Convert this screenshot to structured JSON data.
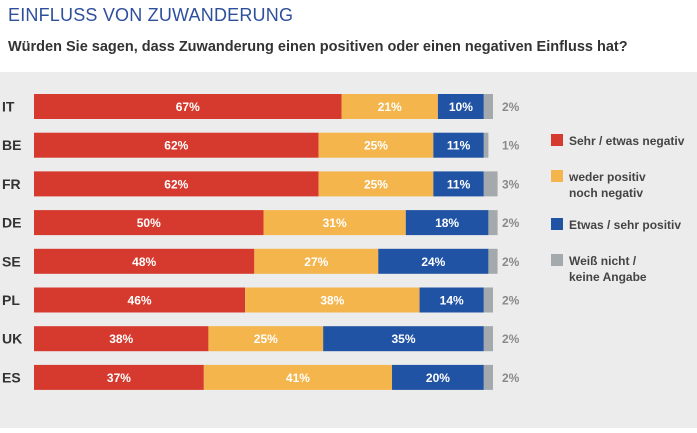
{
  "header": {
    "title": "EINFLUSS VON ZUWANDERUNG",
    "subtitle": "Würden Sie sagen, dass Zuwanderung einen positiven oder einen negativen Einfluss hat?"
  },
  "chart_data": {
    "type": "bar",
    "orientation": "horizontal",
    "stacked": true,
    "categories": [
      "IT",
      "BE",
      "FR",
      "DE",
      "SE",
      "PL",
      "UK",
      "ES"
    ],
    "series": [
      {
        "name": "Sehr / etwas negativ",
        "color": "#d63a2e",
        "values": [
          67,
          62,
          62,
          50,
          48,
          46,
          38,
          37
        ]
      },
      {
        "name": "weder positiv noch negativ",
        "name_lines": [
          "weder positiv",
          "noch negativ"
        ],
        "color": "#f4b54d",
        "values": [
          21,
          25,
          25,
          31,
          27,
          38,
          25,
          41
        ]
      },
      {
        "name": "Etwas / sehr positiv",
        "color": "#2153a4",
        "values": [
          10,
          11,
          11,
          18,
          24,
          14,
          35,
          20
        ]
      },
      {
        "name": "Weiß nicht / keine Angabe",
        "name_lines": [
          "Weiß nicht /",
          "keine Angabe"
        ],
        "color": "#a4a9ad",
        "values": [
          2,
          1,
          3,
          2,
          2,
          2,
          2,
          2
        ]
      }
    ],
    "value_suffix": "%",
    "xlim": [
      0,
      100
    ],
    "legend_position": "right",
    "grid": false
  }
}
